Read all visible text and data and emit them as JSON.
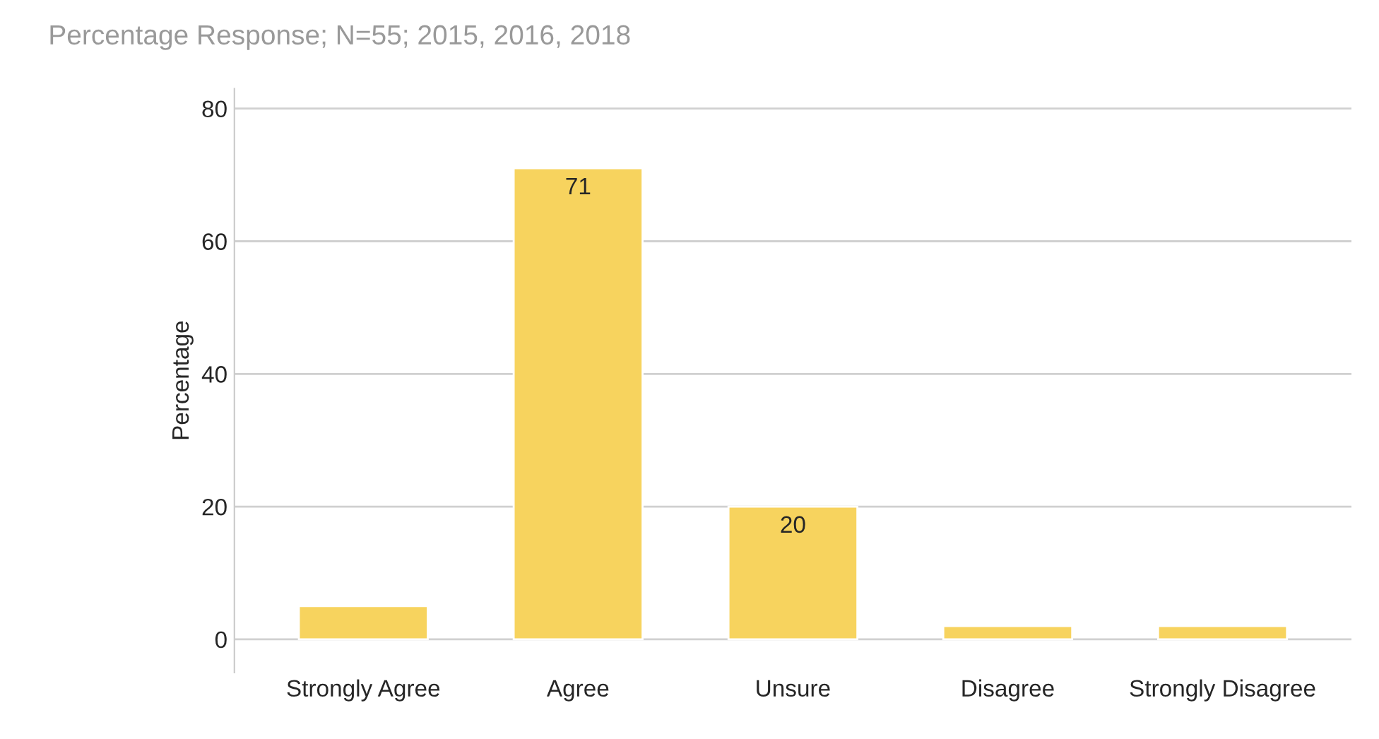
{
  "chart_data": {
    "type": "bar",
    "title": "Percentage Response; N=55; 2015, 2016, 2018",
    "ylabel": "Percentage",
    "categories": [
      "Strongly Agree",
      "Agree",
      "Unsure",
      "Disagree",
      "Strongly Disagree"
    ],
    "values": [
      5,
      71,
      20,
      2,
      2
    ],
    "value_labels": [
      null,
      "71",
      "20",
      null,
      null
    ],
    "color": "#f7d35e",
    "ylim": [
      -5,
      83
    ],
    "yticks": [
      0,
      20,
      40,
      60,
      80
    ],
    "grid": "y"
  }
}
